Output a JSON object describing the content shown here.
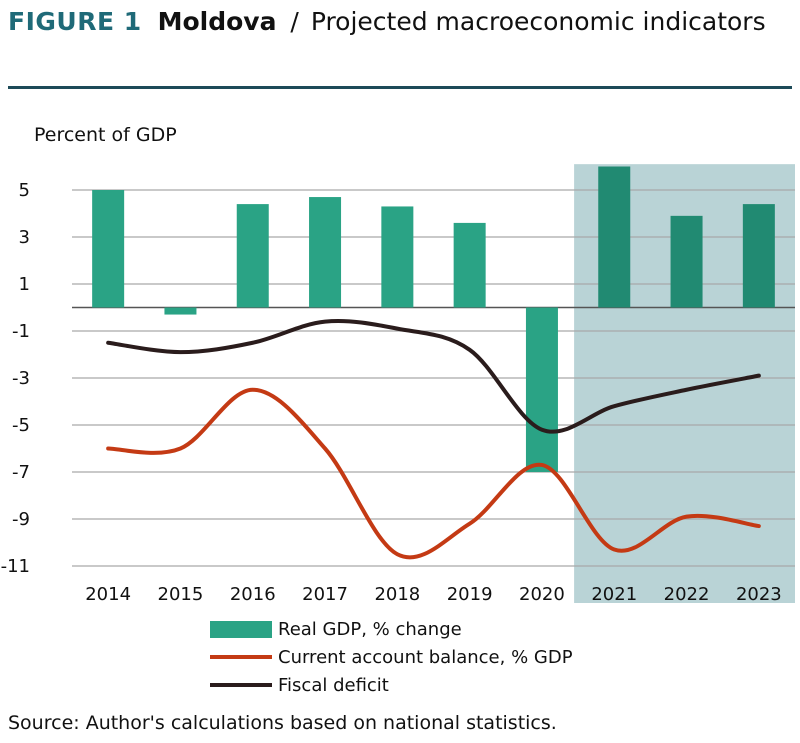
{
  "header": {
    "figure_label": "FIGURE 1",
    "country": "Moldova",
    "separator": "/",
    "subtitle": "Projected macroeconomic indicators"
  },
  "footer": {
    "source": "Source: Author's calculations based on national statistics."
  },
  "colors": {
    "bars": "#2aa385",
    "bars_projected": "#218a72",
    "current_account": "#c43a14",
    "fiscal": "#2a1c1c",
    "projection_shade": "#b9d3d6",
    "rule": "#1d4a58",
    "title_accent": "#1f6a78"
  },
  "chart_data": {
    "type": "bar",
    "ylabel": "Percent of GDP",
    "ylim": [
      -11,
      6
    ],
    "yticks": [
      5,
      3,
      1,
      -1,
      -3,
      -5,
      -7,
      -9,
      -11
    ],
    "categories": [
      "2014",
      "2015",
      "2016",
      "2017",
      "2018",
      "2019",
      "2020",
      "2021",
      "2022",
      "2023"
    ],
    "projection_start": "2021",
    "series": [
      {
        "name": "Real GDP, % change",
        "kind": "bar",
        "values": [
          5.0,
          -0.3,
          4.4,
          4.7,
          4.3,
          3.6,
          -7.0,
          6.0,
          3.9,
          4.4
        ]
      },
      {
        "name": "Current account balance, % GDP",
        "kind": "line",
        "values": [
          -6.0,
          -6.0,
          -3.5,
          -6.0,
          -10.5,
          -9.2,
          -6.7,
          -10.3,
          -8.9,
          -9.3
        ]
      },
      {
        "name": "Fiscal deficit",
        "kind": "line",
        "values": [
          -1.5,
          -1.9,
          -1.5,
          -0.6,
          -0.9,
          -1.8,
          -5.2,
          -4.2,
          -3.5,
          -2.9
        ]
      }
    ],
    "grid": true,
    "legend_position": "bottom"
  }
}
